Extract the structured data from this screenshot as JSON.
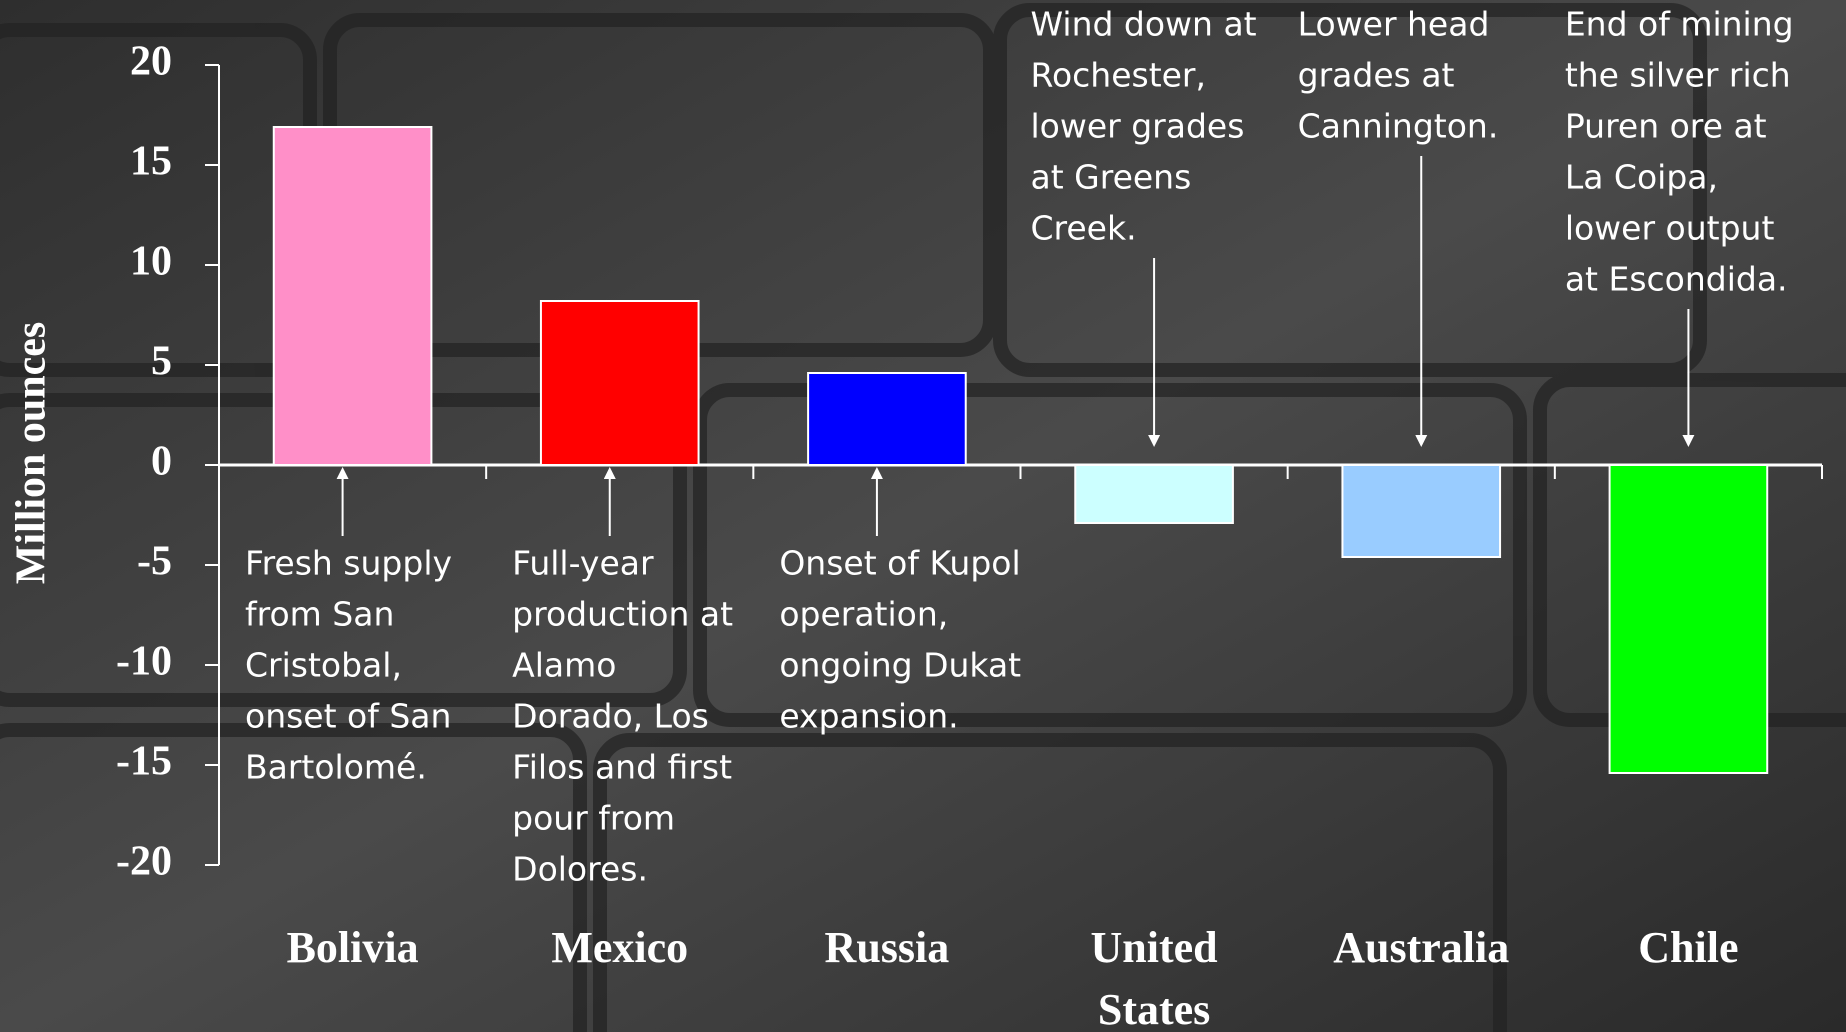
{
  "chart_data": {
    "type": "bar",
    "y_label": "Million ounces",
    "categories": [
      "Bolivia",
      "Mexico",
      "Russia",
      "United States",
      "Australia",
      "Chile"
    ],
    "values": [
      16.9,
      8.2,
      4.6,
      -2.9,
      -4.6,
      -15.4
    ],
    "colors": [
      "#ff8fc8",
      "#ff0000",
      "#0000ff",
      "#ccffff",
      "#99ccff",
      "#00ff00"
    ],
    "ylim": [
      -20,
      20
    ],
    "yticks": [
      -20,
      -15,
      -10,
      -5,
      0,
      5,
      10,
      15,
      20
    ],
    "annotations": [
      [
        "Fresh supply",
        "from San",
        "Cristobal,",
        "onset of San",
        "Bartolomé."
      ],
      [
        "Full-year",
        "production at",
        "Alamo",
        "Dorado, Los",
        "Filos and first",
        "pour from",
        "Dolores."
      ],
      [
        "Onset of Kupol",
        "operation,",
        "ongoing Dukat",
        "expansion."
      ],
      [
        "Wind down at",
        "Rochester,",
        "lower grades",
        "at Greens",
        "Creek."
      ],
      [
        "Lower head",
        "grades at",
        "Cannington."
      ],
      [
        "End of mining",
        "the silver rich",
        "Puren ore at",
        "La Coipa,",
        "lower output",
        "at Escondida."
      ]
    ]
  }
}
